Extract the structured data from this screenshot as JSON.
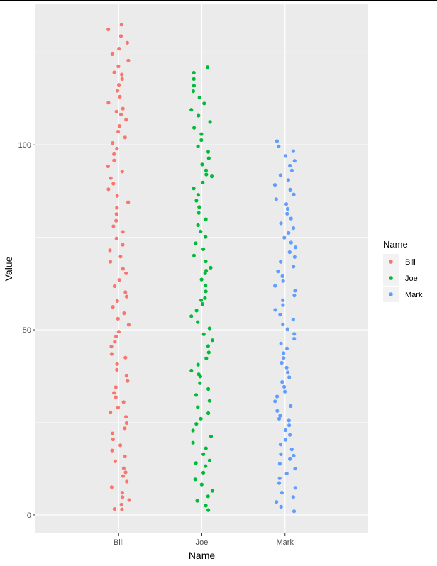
{
  "chart_data": {
    "type": "scatter",
    "title": "",
    "xlabel": "Name",
    "ylabel": "Value",
    "categories": [
      "Bill",
      "Joe",
      "Mark"
    ],
    "ylim": [
      -5,
      138
    ],
    "yticks": [
      0,
      50,
      100
    ],
    "grid": true,
    "legend": {
      "title": "Name",
      "placement": "right",
      "entries": [
        "Bill",
        "Joe",
        "Mark"
      ]
    },
    "colors": {
      "Bill": "#F8766D",
      "Joe": "#00BA38",
      "Mark": "#619CFF",
      "panel": "#EBEBEB",
      "grid": "#FFFFFF"
    },
    "series": [
      {
        "name": "Bill",
        "values": [
          1.5,
          1.6,
          2.8,
          4.0,
          4.8,
          6.0,
          7.5,
          9.0,
          10.5,
          11.5,
          12.6,
          14.5,
          15.8,
          17.4,
          18.8,
          20.4,
          22.0,
          23.4,
          24.8,
          26.5,
          27.7,
          29.0,
          30.5,
          31.8,
          33.0,
          34.5,
          36.2,
          37.6,
          39.2,
          40.8,
          42.5,
          43.5,
          45.5,
          46.8,
          48.2,
          49.5,
          51.4,
          53.0,
          54.5,
          56.2,
          57.8,
          59.0,
          60.2,
          61.8,
          63.5,
          65.3,
          66.5,
          68.4,
          69.8,
          71.5,
          73.0,
          74.7,
          76.5,
          78.0,
          79.5,
          81.3,
          83.0,
          84.5,
          86.2,
          88.0,
          89.5,
          91.0,
          92.8,
          94.2,
          95.8,
          97.5,
          99.0,
          100.5,
          102.0,
          103.6,
          105.1,
          106.8,
          108.2,
          109.8,
          111.4,
          113.0,
          114.6,
          116.2,
          117.8,
          119.6,
          121.2,
          122.8,
          124.5,
          126.0,
          127.6,
          129.4,
          131.2,
          132.5,
          119.0,
          109.0
        ]
      },
      {
        "name": "Joe",
        "values": [
          1.3,
          2.5,
          3.8,
          5.0,
          6.5,
          8.2,
          9.6,
          11.4,
          13.2,
          14.7,
          16.4,
          18.0,
          19.5,
          21.2,
          22.8,
          24.6,
          26.0,
          27.5,
          29.1,
          30.8,
          32.4,
          34.0,
          35.6,
          37.4,
          39.0,
          40.6,
          42.3,
          43.9,
          45.6,
          47.2,
          48.8,
          50.4,
          52.1,
          53.7,
          55.2,
          57.0,
          58.6,
          60.4,
          62.0,
          63.6,
          65.3,
          66.8,
          68.5,
          70.1,
          71.8,
          73.4,
          75.1,
          76.6,
          78.3,
          79.9,
          81.6,
          83.2,
          84.9,
          86.5,
          88.2,
          89.8,
          91.5,
          93.1,
          94.7,
          96.4,
          98.1,
          99.6,
          101.3,
          102.9,
          104.6,
          106.2,
          107.9,
          109.5,
          111.2,
          112.8,
          114.5,
          116.0,
          117.8,
          119.5,
          121.0,
          92.0,
          66.0,
          38.0,
          14.0,
          58.0
        ]
      },
      {
        "name": "Mark",
        "values": [
          1.0,
          2.2,
          3.5,
          4.8,
          6.0,
          7.3,
          8.6,
          9.9,
          11.2,
          12.5,
          13.8,
          15.1,
          16.4,
          17.7,
          19.0,
          20.3,
          21.6,
          22.9,
          24.2,
          25.5,
          26.8,
          28.1,
          29.4,
          30.7,
          32.0,
          33.3,
          34.6,
          35.9,
          37.2,
          38.5,
          39.8,
          41.1,
          42.4,
          43.7,
          45.0,
          46.3,
          47.6,
          48.9,
          50.2,
          51.5,
          52.8,
          54.1,
          55.4,
          56.7,
          58.0,
          59.3,
          60.6,
          61.9,
          63.2,
          64.5,
          65.8,
          67.1,
          68.4,
          69.7,
          71.0,
          72.3,
          73.6,
          74.9,
          76.2,
          77.5,
          78.8,
          80.1,
          81.4,
          82.7,
          84.0,
          85.3,
          86.6,
          87.9,
          89.2,
          90.5,
          91.8,
          93.1,
          94.4,
          95.7,
          97.0,
          98.3,
          99.6,
          101.0,
          26.0,
          16.0
        ]
      }
    ]
  }
}
